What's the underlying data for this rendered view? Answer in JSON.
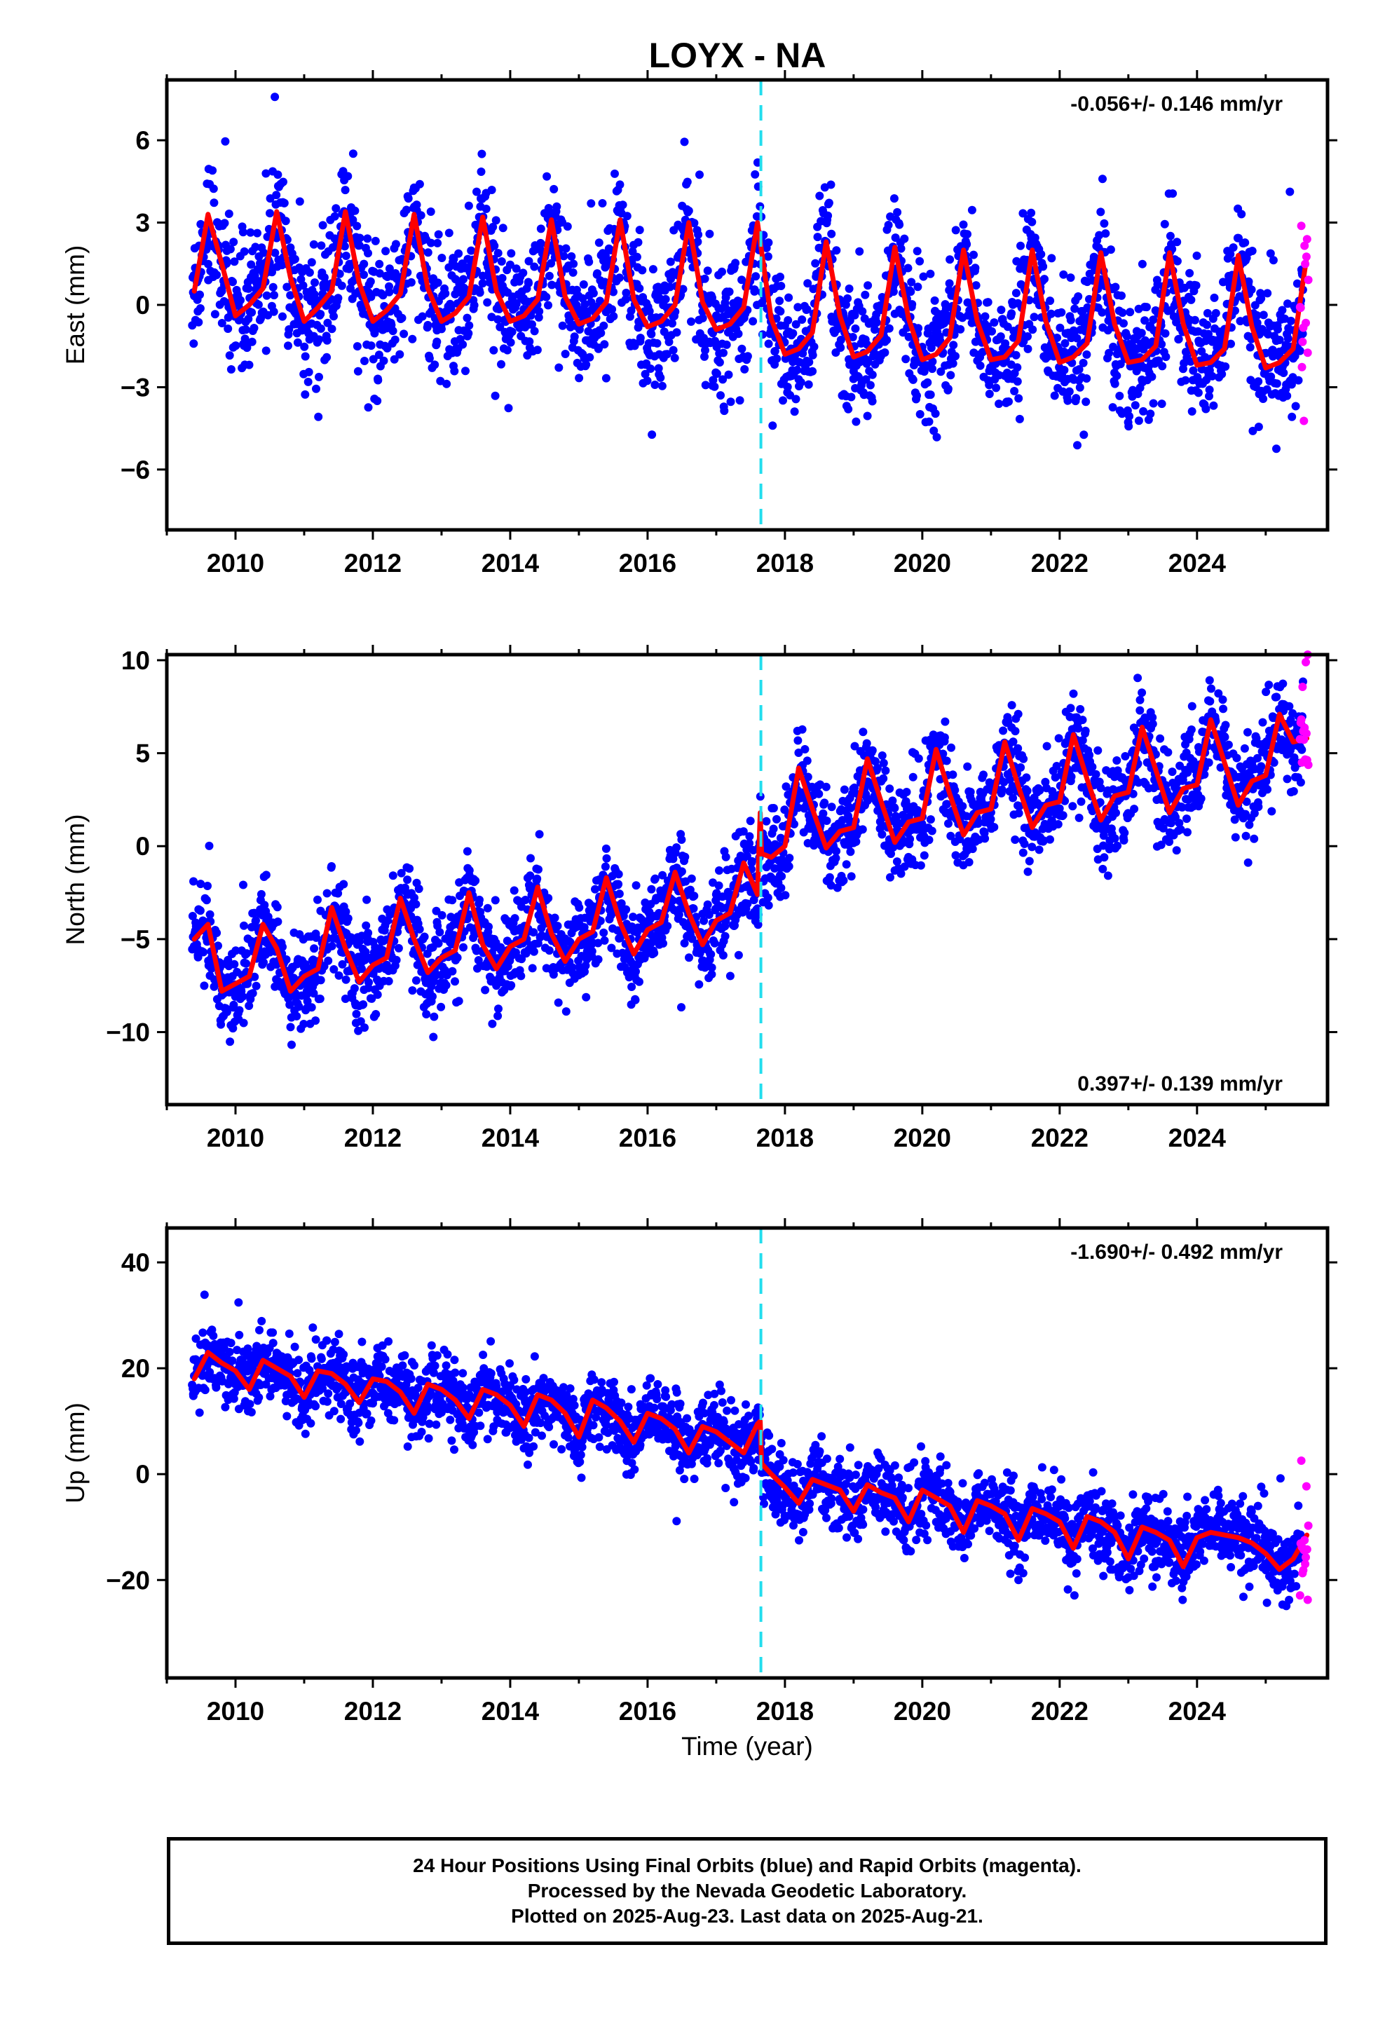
{
  "title": "LOYX - NA",
  "colors": {
    "final_orbits": "#0000ff",
    "rapid_orbits": "#ff00ff",
    "model": "#ff0000",
    "event_line": "#22ddee"
  },
  "footer": {
    "line1": "24 Hour Positions Using Final Orbits (blue) and Rapid Orbits (magenta).",
    "line2": "Processed by the Nevada Geodetic Laboratory.",
    "line3": "Plotted on 2025-Aug-23. Last data on 2025-Aug-21."
  },
  "chart_data": [
    {
      "type": "scatter",
      "component": "east",
      "ylabel": "East (mm)",
      "xlabel": "",
      "rate_label": "-0.056+/- 0.146 mm/yr",
      "xlim": [
        2009.0,
        2025.9
      ],
      "ylim": [
        -8.2,
        8.2
      ],
      "xticks": [
        2010,
        2012,
        2014,
        2016,
        2018,
        2020,
        2022,
        2024
      ],
      "yticks": [
        -6,
        -3,
        0,
        3,
        6
      ],
      "ytick_labels": [
        "−6",
        "−3",
        "0",
        "3",
        "6"
      ],
      "event_epoch": 2017.65,
      "data_range": [
        2009.37,
        2025.55
      ],
      "rapid_range": [
        2025.5,
        2025.63
      ],
      "model": {
        "x": [
          2009.4,
          2009.6,
          2009.8,
          2010.0,
          2010.2,
          2010.4,
          2010.6,
          2010.8,
          2011.0,
          2011.2,
          2011.4,
          2011.6,
          2011.8,
          2012.0,
          2012.2,
          2012.4,
          2012.6,
          2012.8,
          2013.0,
          2013.2,
          2013.4,
          2013.6,
          2013.8,
          2014.0,
          2014.2,
          2014.4,
          2014.6,
          2014.8,
          2015.0,
          2015.2,
          2015.4,
          2015.6,
          2015.8,
          2016.0,
          2016.2,
          2016.4,
          2016.6,
          2016.8,
          2017.0,
          2017.2,
          2017.4,
          2017.6,
          2017.8,
          2018.0,
          2018.2,
          2018.4,
          2018.6,
          2018.8,
          2019.0,
          2019.2,
          2019.4,
          2019.6,
          2019.8,
          2020.0,
          2020.2,
          2020.4,
          2020.6,
          2020.8,
          2021.0,
          2021.2,
          2021.4,
          2021.6,
          2021.8,
          2022.0,
          2022.2,
          2022.4,
          2022.6,
          2022.8,
          2023.0,
          2023.2,
          2023.4,
          2023.6,
          2023.8,
          2024.0,
          2024.2,
          2024.4,
          2024.6,
          2024.8,
          2025.0,
          2025.2,
          2025.4,
          2025.6
        ],
        "y": [
          0.5,
          3.3,
          1.5,
          -0.4,
          0.0,
          0.6,
          3.4,
          1.0,
          -0.6,
          -0.1,
          0.5,
          3.4,
          0.8,
          -0.6,
          -0.2,
          0.4,
          3.3,
          0.6,
          -0.6,
          -0.3,
          0.3,
          3.2,
          0.5,
          -0.6,
          -0.4,
          0.2,
          3.1,
          0.3,
          -0.7,
          -0.5,
          0.1,
          3.1,
          0.2,
          -0.8,
          -0.6,
          0.0,
          3.0,
          0.1,
          -0.9,
          -0.7,
          -0.1,
          3.0,
          -0.5,
          -1.8,
          -1.6,
          -1.0,
          2.3,
          -0.4,
          -1.9,
          -1.7,
          -1.1,
          2.1,
          -0.5,
          -2.0,
          -1.8,
          -1.2,
          2.0,
          -0.6,
          -2.0,
          -1.9,
          -1.3,
          2.0,
          -0.6,
          -2.1,
          -1.9,
          -1.4,
          1.9,
          -0.7,
          -2.1,
          -2.0,
          -1.5,
          1.9,
          -0.7,
          -2.2,
          -2.1,
          -1.6,
          1.8,
          -0.8,
          -2.3,
          -2.1,
          -1.6,
          1.8
        ]
      },
      "seasonal_amplitude": 2.0,
      "scatter_noise": 1.2
    },
    {
      "type": "scatter",
      "component": "north",
      "ylabel": "North (mm)",
      "xlabel": "",
      "rate_label": "0.397+/- 0.139 mm/yr",
      "xlim": [
        2009.0,
        2025.9
      ],
      "ylim": [
        -13.9,
        10.3
      ],
      "xticks": [
        2010,
        2012,
        2014,
        2016,
        2018,
        2020,
        2022,
        2024
      ],
      "yticks": [
        -10,
        -5,
        0,
        5,
        10
      ],
      "ytick_labels": [
        "−10",
        "−5",
        "0",
        "5",
        "10"
      ],
      "event_epoch": 2017.65,
      "data_range": [
        2009.37,
        2025.55
      ],
      "rapid_range": [
        2025.5,
        2025.63
      ],
      "model": {
        "x": [
          2009.4,
          2009.6,
          2009.8,
          2010.0,
          2010.2,
          2010.4,
          2010.6,
          2010.8,
          2011.0,
          2011.2,
          2011.4,
          2011.6,
          2011.8,
          2012.0,
          2012.2,
          2012.4,
          2012.6,
          2012.8,
          2013.0,
          2013.2,
          2013.4,
          2013.6,
          2013.8,
          2014.0,
          2014.2,
          2014.4,
          2014.6,
          2014.8,
          2015.0,
          2015.2,
          2015.4,
          2015.6,
          2015.8,
          2016.0,
          2016.2,
          2016.4,
          2016.6,
          2016.8,
          2017.0,
          2017.2,
          2017.4,
          2017.6,
          2017.64,
          2017.66,
          2017.8,
          2018.0,
          2018.2,
          2018.4,
          2018.6,
          2018.8,
          2019.0,
          2019.2,
          2019.4,
          2019.6,
          2019.8,
          2020.0,
          2020.2,
          2020.4,
          2020.6,
          2020.8,
          2021.0,
          2021.2,
          2021.4,
          2021.6,
          2021.8,
          2022.0,
          2022.2,
          2022.4,
          2022.6,
          2022.8,
          2023.0,
          2023.2,
          2023.4,
          2023.6,
          2023.8,
          2024.0,
          2024.2,
          2024.4,
          2024.6,
          2024.8,
          2025.0,
          2025.2,
          2025.4,
          2025.6
        ],
        "y": [
          -5.0,
          -4.2,
          -7.8,
          -7.4,
          -7.0,
          -4.2,
          -5.5,
          -7.8,
          -7.0,
          -6.6,
          -3.3,
          -5.5,
          -7.3,
          -6.4,
          -6.0,
          -2.8,
          -5.0,
          -6.8,
          -6.0,
          -5.6,
          -2.5,
          -5.3,
          -6.6,
          -5.4,
          -5.0,
          -2.2,
          -4.7,
          -6.2,
          -5.0,
          -4.6,
          -1.7,
          -4.1,
          -5.8,
          -4.5,
          -4.1,
          -1.4,
          -3.6,
          -5.3,
          -4.0,
          -3.6,
          -0.9,
          -2.6,
          1.8,
          -0.4,
          -0.6,
          0.0,
          4.2,
          2.0,
          -0.1,
          0.8,
          1.0,
          4.7,
          2.4,
          0.2,
          1.3,
          1.5,
          5.2,
          2.8,
          0.6,
          1.8,
          2.0,
          5.6,
          3.2,
          1.0,
          2.2,
          2.4,
          6.0,
          3.6,
          1.4,
          2.7,
          2.9,
          6.4,
          4.1,
          1.8,
          3.1,
          3.3,
          6.8,
          4.5,
          2.2,
          3.5,
          3.8,
          7.1,
          5.6,
          5.8
        ]
      },
      "seasonal_amplitude": 2.0,
      "scatter_noise": 1.3
    },
    {
      "type": "scatter",
      "component": "up",
      "ylabel": "Up (mm)",
      "xlabel": "Time (year)",
      "rate_label": "-1.690+/- 0.492 mm/yr",
      "xlim": [
        2009.0,
        2025.9
      ],
      "ylim": [
        -38.5,
        46.5
      ],
      "xticks": [
        2010,
        2012,
        2014,
        2016,
        2018,
        2020,
        2022,
        2024
      ],
      "yticks": [
        -20,
        0,
        20,
        40
      ],
      "ytick_labels": [
        "−20",
        "0",
        "20",
        "40"
      ],
      "event_epoch": 2017.65,
      "data_range": [
        2009.37,
        2025.55
      ],
      "rapid_range": [
        2025.5,
        2025.63
      ],
      "model": {
        "x": [
          2009.4,
          2009.6,
          2009.8,
          2010.0,
          2010.2,
          2010.4,
          2010.6,
          2010.8,
          2011.0,
          2011.2,
          2011.4,
          2011.6,
          2011.8,
          2012.0,
          2012.2,
          2012.4,
          2012.6,
          2012.8,
          2013.0,
          2013.2,
          2013.4,
          2013.6,
          2013.8,
          2014.0,
          2014.2,
          2014.4,
          2014.6,
          2014.8,
          2015.0,
          2015.2,
          2015.4,
          2015.6,
          2015.8,
          2016.0,
          2016.2,
          2016.4,
          2016.6,
          2016.8,
          2017.0,
          2017.2,
          2017.4,
          2017.6,
          2017.64,
          2017.66,
          2017.8,
          2018.0,
          2018.2,
          2018.4,
          2018.6,
          2018.8,
          2019.0,
          2019.2,
          2019.4,
          2019.6,
          2019.8,
          2020.0,
          2020.2,
          2020.4,
          2020.6,
          2020.8,
          2021.0,
          2021.2,
          2021.4,
          2021.6,
          2021.8,
          2022.0,
          2022.2,
          2022.4,
          2022.6,
          2022.8,
          2023.0,
          2023.2,
          2023.4,
          2023.6,
          2023.8,
          2024.0,
          2024.2,
          2024.4,
          2024.6,
          2024.8,
          2025.0,
          2025.2,
          2025.4,
          2025.6
        ],
        "y": [
          18.0,
          23.0,
          21.0,
          19.5,
          16.0,
          21.5,
          20.0,
          18.5,
          14.5,
          19.5,
          19.0,
          17.0,
          13.5,
          18.0,
          17.5,
          15.5,
          11.5,
          17.0,
          16.0,
          14.0,
          10.5,
          16.0,
          15.0,
          13.0,
          9.0,
          15.0,
          14.0,
          11.5,
          7.0,
          14.0,
          12.5,
          10.0,
          6.0,
          11.5,
          10.5,
          8.5,
          4.0,
          9.0,
          8.0,
          6.0,
          4.0,
          9.5,
          10.0,
          2.0,
          0.0,
          -2.5,
          -5.5,
          -1.0,
          -2.0,
          -3.0,
          -7.0,
          -2.0,
          -3.5,
          -4.5,
          -9.0,
          -3.0,
          -4.5,
          -6.0,
          -11.0,
          -5.0,
          -6.0,
          -7.5,
          -12.5,
          -6.5,
          -7.5,
          -9.0,
          -14.0,
          -8.0,
          -9.0,
          -11.0,
          -16.0,
          -10.0,
          -11.0,
          -12.5,
          -17.5,
          -12.0,
          -11.0,
          -11.5,
          -12.0,
          -13.0,
          -15.0,
          -18.0,
          -16.0,
          -11.5
        ]
      },
      "seasonal_amplitude": 2.5,
      "scatter_noise": 3.5
    }
  ]
}
